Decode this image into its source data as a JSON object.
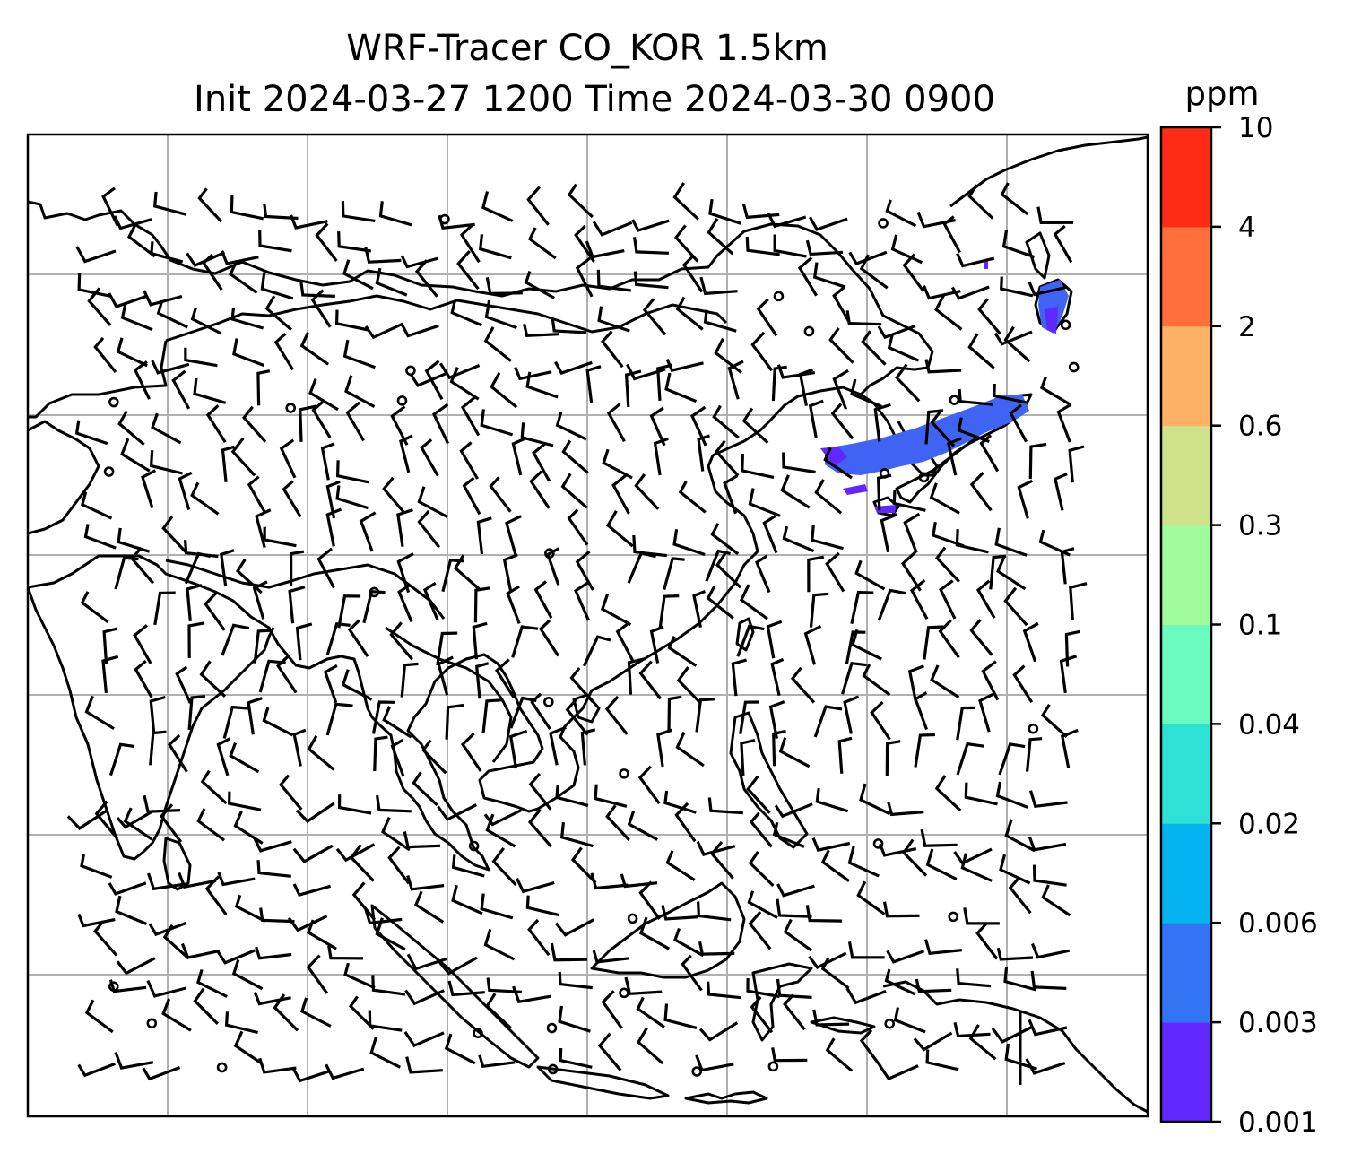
{
  "chart_data": {
    "type": "heatmap",
    "title": "WRF-Tracer CO_KOR 1.5km",
    "subtitle": "Init 2024-03-27 1200 Time 2024-03-30 0900",
    "colorbar": {
      "unit": "ppm",
      "levels": [
        "0.001",
        "0.003",
        "0.006",
        "0.02",
        "0.04",
        "0.1",
        "0.3",
        "0.6",
        "2",
        "4",
        "10"
      ],
      "colors": [
        "#6227ff",
        "#3374f5",
        "#04b3ef",
        "#2fe0d7",
        "#6bfbbf",
        "#9ffb9c",
        "#cfe289",
        "#fdb165",
        "#fe6f3c",
        "#ff2b15"
      ]
    },
    "grid": true,
    "map": "East and Southeast Asia coastlines with wind barbs",
    "plume_color": "#3f63f4",
    "plume_core_color": "#6227ff"
  }
}
